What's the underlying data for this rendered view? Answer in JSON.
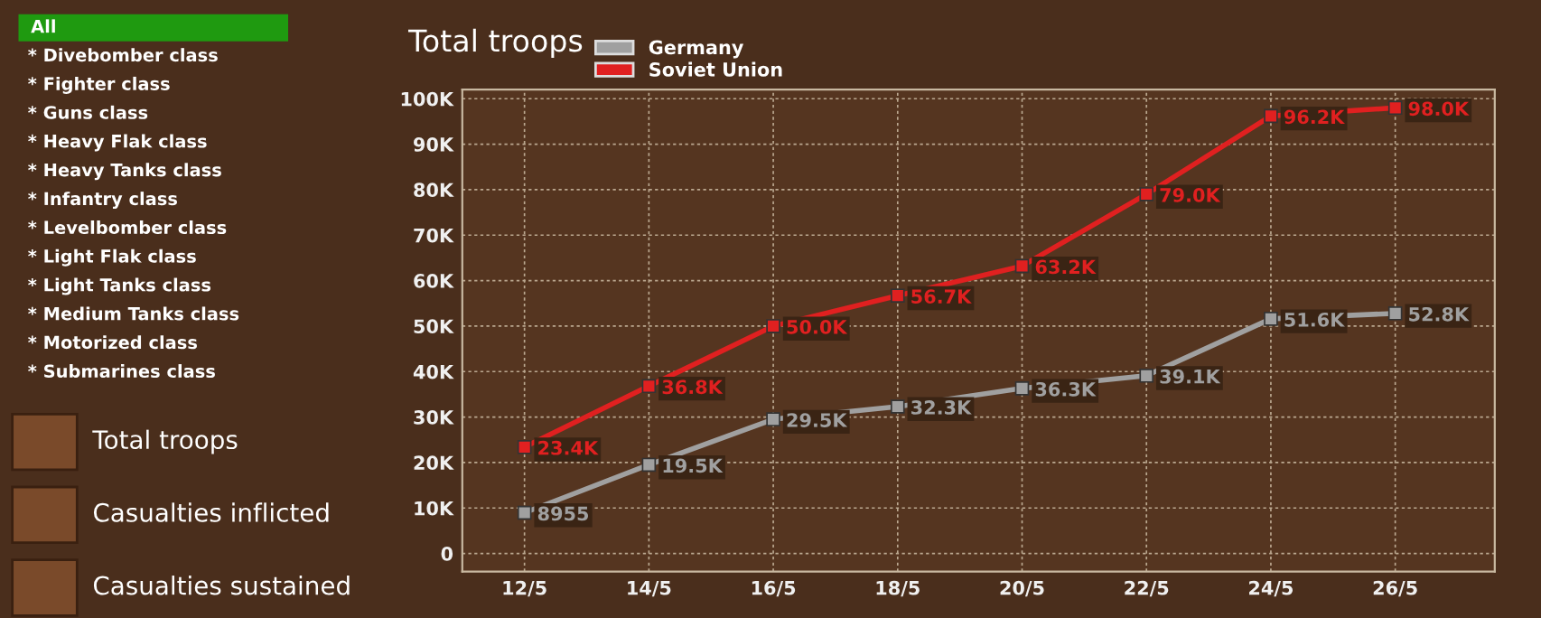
{
  "chart_data": {
    "type": "line",
    "title": "Total troops",
    "categories": [
      "12/5",
      "14/5",
      "16/5",
      "18/5",
      "20/5",
      "22/5",
      "24/5",
      "26/5"
    ],
    "series": [
      {
        "name": "Germany",
        "color": "#a0a0a0",
        "values": [
          8955,
          19500,
          29500,
          32300,
          36300,
          39100,
          51600,
          52800
        ],
        "value_labels": [
          "8955",
          "19.5K",
          "29.5K",
          "32.3K",
          "36.3K",
          "39.1K",
          "51.6K",
          "52.8K"
        ]
      },
      {
        "name": "Soviet Union",
        "color": "#e02020",
        "values": [
          23400,
          36800,
          50000,
          56700,
          63200,
          79000,
          96200,
          98000
        ],
        "value_labels": [
          "23.4K",
          "36.8K",
          "50.0K",
          "56.7K",
          "63.2K",
          "79.0K",
          "96.2K",
          "98.0K"
        ]
      }
    ],
    "ylim": [
      -4000,
      102000
    ],
    "yticks": [
      {
        "value": 0,
        "label": "0"
      },
      {
        "value": 10000,
        "label": "10K"
      },
      {
        "value": 20000,
        "label": "20K"
      },
      {
        "value": 30000,
        "label": "30K"
      },
      {
        "value": 40000,
        "label": "40K"
      },
      {
        "value": 50000,
        "label": "50K"
      },
      {
        "value": 60000,
        "label": "60K"
      },
      {
        "value": 70000,
        "label": "70K"
      },
      {
        "value": 80000,
        "label": "80K"
      },
      {
        "value": 90000,
        "label": "90K"
      },
      {
        "value": 100000,
        "label": "100K"
      }
    ],
    "grid": true,
    "legend": "top left",
    "marker": "square",
    "line_style": "solid",
    "annotations": [
      "All",
      "* Divebomber class",
      "* Fighter class",
      "* Guns class",
      "* Heavy Flak class",
      "* Heavy Tanks class",
      "* Infantry class",
      "* Levelbomber class",
      "* Light Flak class",
      "* Light Tanks class",
      "* Medium Tanks class",
      "* Motorized class",
      "* Submarines class",
      "Total troops",
      "Casualties inflicted",
      "Casualties sustained"
    ]
  }
}
